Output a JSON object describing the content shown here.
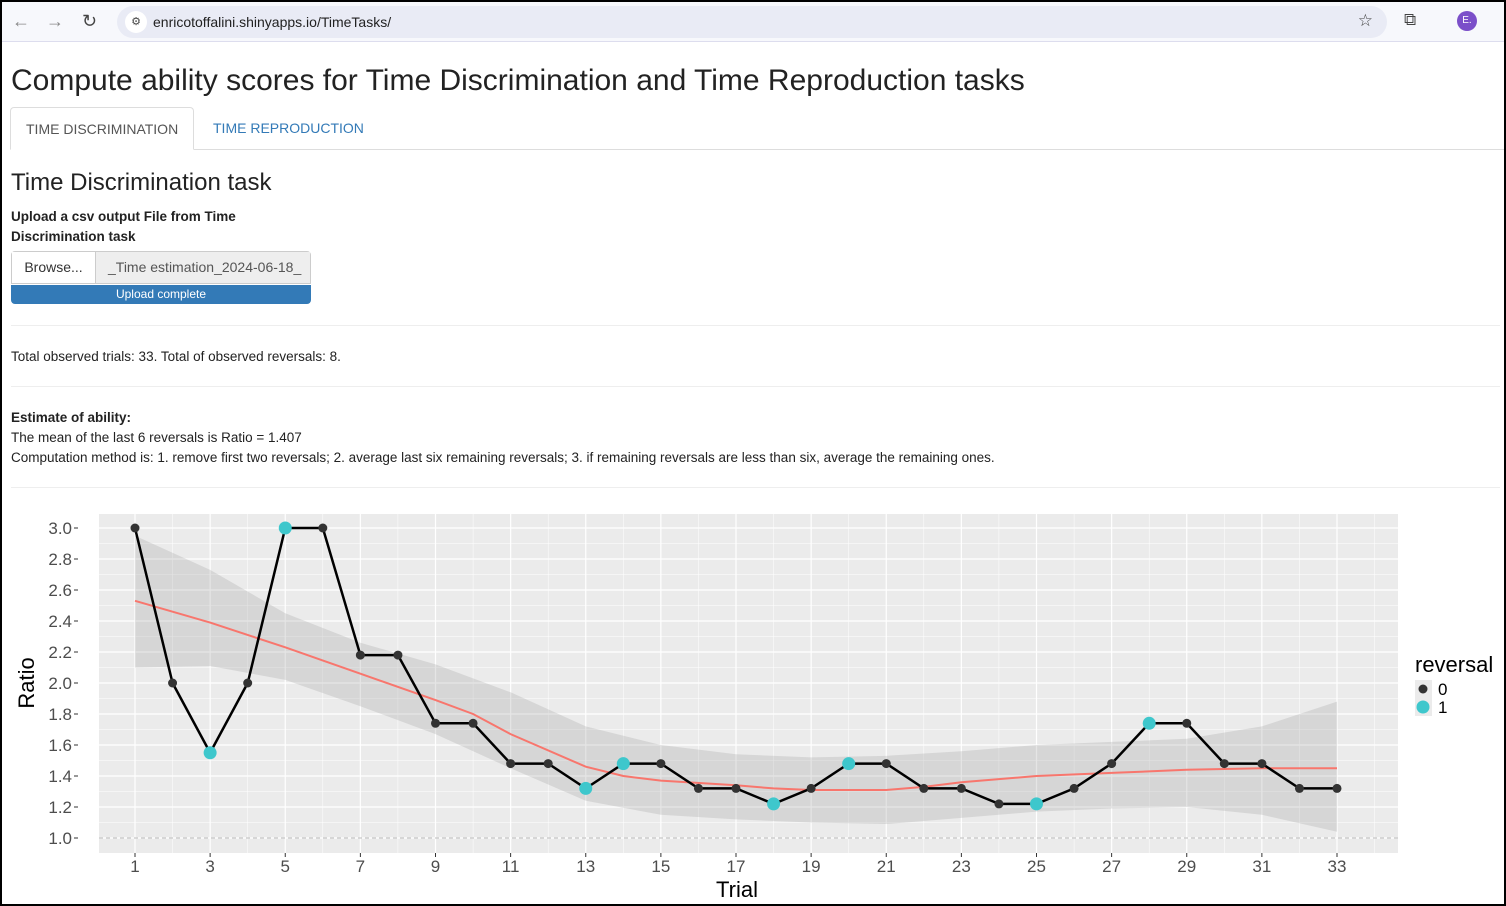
{
  "browser": {
    "url": "enricotoffalini.shinyapps.io/TimeTasks/",
    "avatar": "E."
  },
  "page_title": "Compute ability scores for Time Discrimination and Time Reproduction tasks",
  "tabs": [
    {
      "label": "TIME DISCRIMINATION",
      "active": true
    },
    {
      "label": "TIME REPRODUCTION",
      "active": false
    }
  ],
  "section_title": "Time Discrimination task",
  "upload": {
    "label": "Upload a csv output File from Time Discrimination task",
    "browse_label": "Browse...",
    "file_name": "_Time estimation_2024-06-18_",
    "progress_label": "Upload complete",
    "progress": 100
  },
  "summary": "Total observed trials: 33. Total of observed reversals: 8.",
  "estimate": {
    "heading": "Estimate of ability:",
    "line1": "The mean of the last 6 reversals is Ratio = 1.407",
    "line2": "Computation method is: 1. remove first two reversals; 2. average last six remaining reversals; 3. if remaining reversals are less than six, average the remaining ones."
  },
  "chart_data": {
    "type": "line",
    "xlabel": "Trial",
    "ylabel": "Ratio",
    "xlim": [
      0,
      34
    ],
    "ylim": [
      0.9,
      3.1
    ],
    "x_ticks": [
      1,
      3,
      5,
      7,
      9,
      11,
      13,
      15,
      17,
      19,
      21,
      23,
      25,
      27,
      29,
      31,
      33
    ],
    "y_ticks": [
      "1.0",
      "1.2",
      "1.4",
      "1.6",
      "1.8",
      "2.0",
      "2.2",
      "2.4",
      "2.6",
      "2.8",
      "3.0"
    ],
    "reference_line": 1.0,
    "grid": true,
    "legend": {
      "title": "reversal",
      "position": "right",
      "entries": [
        {
          "label": "0",
          "color": "#333333"
        },
        {
          "label": "1",
          "color": "#3ec7cc"
        }
      ]
    },
    "trial": [
      1,
      2,
      3,
      4,
      5,
      6,
      7,
      8,
      9,
      10,
      11,
      12,
      13,
      14,
      15,
      16,
      17,
      18,
      19,
      20,
      21,
      22,
      23,
      24,
      25,
      26,
      27,
      28,
      29,
      30,
      31,
      32,
      33
    ],
    "ratio": [
      3.0,
      2.0,
      1.55,
      2.0,
      3.0,
      3.0,
      2.18,
      2.18,
      1.74,
      1.74,
      1.48,
      1.48,
      1.32,
      1.48,
      1.48,
      1.32,
      1.32,
      1.22,
      1.32,
      1.48,
      1.48,
      1.32,
      1.32,
      1.22,
      1.22,
      1.32,
      1.48,
      1.74,
      1.74,
      1.48,
      1.48,
      1.32,
      1.32
    ],
    "reversal": [
      0,
      0,
      1,
      0,
      1,
      0,
      0,
      0,
      0,
      0,
      0,
      0,
      1,
      1,
      0,
      0,
      0,
      1,
      0,
      1,
      0,
      0,
      0,
      0,
      1,
      0,
      0,
      1,
      0,
      0,
      0,
      0,
      0
    ],
    "smooth": {
      "color": "#f8766d",
      "x": [
        1,
        3,
        5,
        7,
        9,
        10,
        11,
        13,
        14,
        15,
        17,
        18,
        19,
        21,
        22,
        23,
        25,
        27,
        29,
        31,
        33
      ],
      "y": [
        2.53,
        2.39,
        2.23,
        2.06,
        1.89,
        1.8,
        1.67,
        1.46,
        1.4,
        1.37,
        1.34,
        1.32,
        1.31,
        1.31,
        1.33,
        1.36,
        1.4,
        1.42,
        1.44,
        1.45,
        1.45
      ],
      "ci_x": [
        1,
        3,
        5,
        7,
        9,
        11,
        13,
        15,
        17,
        19,
        21,
        23,
        25,
        27,
        29,
        31,
        33
      ],
      "ci_upper": [
        2.95,
        2.73,
        2.45,
        2.26,
        2.12,
        1.94,
        1.72,
        1.6,
        1.54,
        1.52,
        1.53,
        1.56,
        1.6,
        1.62,
        1.64,
        1.72,
        1.88
      ],
      "ci_lower": [
        2.1,
        2.11,
        2.02,
        1.85,
        1.67,
        1.45,
        1.24,
        1.15,
        1.12,
        1.1,
        1.09,
        1.13,
        1.17,
        1.19,
        1.2,
        1.15,
        1.04
      ]
    }
  }
}
